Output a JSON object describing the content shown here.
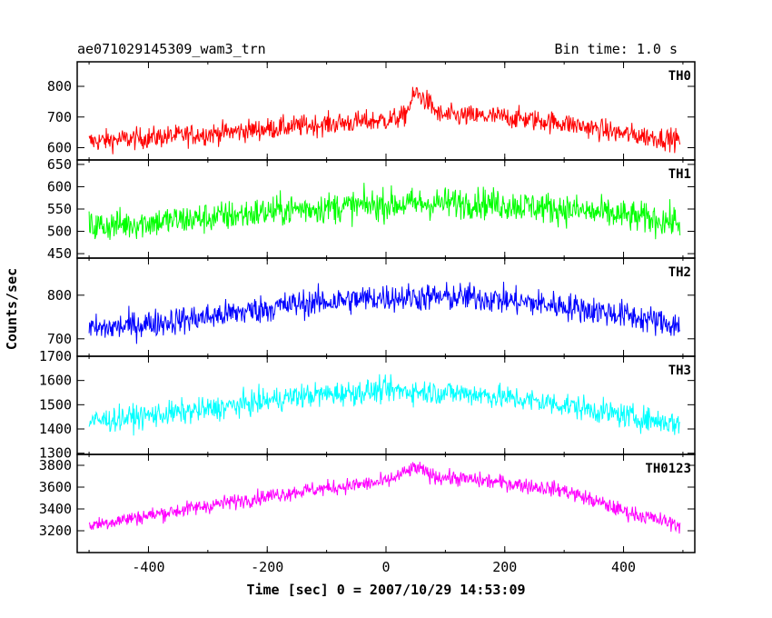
{
  "chart_data": {
    "type": "line",
    "title": "ae071029145309_wam3_trn",
    "subtitle": "Bin time: 1.0 s",
    "xlabel": "Time [sec] 0 = 2007/10/29 14:53:09",
    "ylabel": "Counts/sec",
    "xlim": [
      -520,
      520
    ],
    "x_ticks": [
      -400,
      -200,
      0,
      200,
      400
    ],
    "grid": false,
    "panels": [
      {
        "name": "TH0",
        "color": "#ff0000",
        "ylim": [
          560,
          880
        ],
        "y_ticks": [
          600,
          700,
          800
        ],
        "baseline": [
          [
            -500,
            620
          ],
          [
            -300,
            645
          ],
          [
            -150,
            670
          ],
          [
            0,
            690
          ],
          [
            30,
            700
          ],
          [
            50,
            780
          ],
          [
            70,
            750
          ],
          [
            90,
            705
          ],
          [
            200,
            700
          ],
          [
            300,
            680
          ],
          [
            400,
            645
          ],
          [
            495,
            625
          ]
        ],
        "noise": 35
      },
      {
        "name": "TH1",
        "color": "#00ff00",
        "ylim": [
          440,
          660
        ],
        "y_ticks": [
          450,
          500,
          550,
          600,
          650
        ],
        "baseline": [
          [
            -500,
            510
          ],
          [
            -300,
            530
          ],
          [
            -150,
            550
          ],
          [
            0,
            560
          ],
          [
            150,
            565
          ],
          [
            300,
            550
          ],
          [
            400,
            535
          ],
          [
            495,
            520
          ]
        ],
        "noise": 35
      },
      {
        "name": "TH2",
        "color": "#0000ff",
        "ylim": [
          660,
          885
        ],
        "y_ticks": [
          700,
          800
        ],
        "baseline": [
          [
            -500,
            720
          ],
          [
            -300,
            750
          ],
          [
            -150,
            780
          ],
          [
            0,
            795
          ],
          [
            150,
            795
          ],
          [
            300,
            775
          ],
          [
            400,
            755
          ],
          [
            495,
            730
          ]
        ],
        "noise": 32
      },
      {
        "name": "TH3",
        "color": "#00ffff",
        "ylim": [
          1295,
          1700
        ],
        "y_ticks": [
          1300,
          1400,
          1500,
          1600,
          1700
        ],
        "baseline": [
          [
            -500,
            1430
          ],
          [
            -300,
            1480
          ],
          [
            -150,
            1535
          ],
          [
            0,
            1560
          ],
          [
            150,
            1545
          ],
          [
            300,
            1500
          ],
          [
            400,
            1455
          ],
          [
            495,
            1420
          ]
        ],
        "noise": 50
      },
      {
        "name": "TH0123",
        "color": "#ff00ff",
        "ylim": [
          3000,
          3900
        ],
        "y_ticks": [
          3200,
          3400,
          3600,
          3800
        ],
        "baseline": [
          [
            -500,
            3250
          ],
          [
            -300,
            3430
          ],
          [
            -150,
            3560
          ],
          [
            0,
            3650
          ],
          [
            50,
            3780
          ],
          [
            80,
            3700
          ],
          [
            200,
            3640
          ],
          [
            300,
            3570
          ],
          [
            400,
            3380
          ],
          [
            495,
            3250
          ]
        ],
        "noise": 70
      }
    ]
  }
}
